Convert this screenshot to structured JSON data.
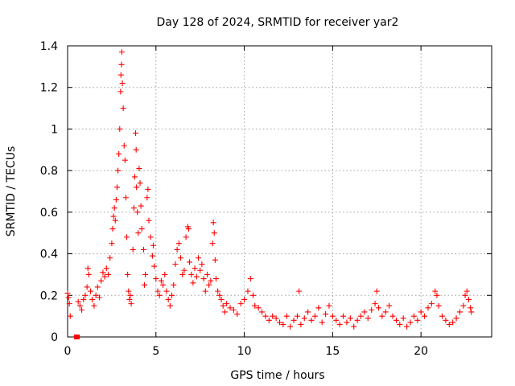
{
  "chart_data": {
    "type": "scatter",
    "title": "Day 128 of 2024, SRMTID for receiver yar2",
    "xlabel": "GPS time / hours",
    "ylabel": "SRMTID / TECUs",
    "xlim": [
      0,
      24
    ],
    "ylim": [
      0,
      1.4
    ],
    "xticks": [
      0,
      5,
      10,
      15,
      20
    ],
    "xtick_labels": [
      "0",
      "5",
      "10",
      "15",
      "20"
    ],
    "yticks": [
      0,
      0.2,
      0.4,
      0.6,
      0.8,
      1.0,
      1.2,
      1.4
    ],
    "ytick_labels": [
      "0",
      "0.2",
      "0.4",
      "0.6",
      "0.8",
      "1",
      "1.2",
      "1.4"
    ],
    "grid": true,
    "series": [
      {
        "name": "yar2",
        "marker": "plus",
        "color": "#ff0000",
        "points": [
          [
            0.0,
            0.21
          ],
          [
            0.05,
            0.19
          ],
          [
            0.1,
            0.16
          ],
          [
            0.15,
            0.1
          ],
          [
            0.5,
            0.0
          ],
          [
            0.55,
            0.0
          ],
          [
            0.6,
            0.17
          ],
          [
            0.7,
            0.15
          ],
          [
            0.8,
            0.13
          ],
          [
            0.9,
            0.18
          ],
          [
            1.0,
            0.2
          ],
          [
            1.1,
            0.24
          ],
          [
            1.15,
            0.33
          ],
          [
            1.2,
            0.3
          ],
          [
            1.3,
            0.22
          ],
          [
            1.4,
            0.18
          ],
          [
            1.5,
            0.15
          ],
          [
            1.6,
            0.2
          ],
          [
            1.7,
            0.24
          ],
          [
            1.8,
            0.19
          ],
          [
            1.9,
            0.27
          ],
          [
            2.0,
            0.31
          ],
          [
            2.1,
            0.29
          ],
          [
            2.2,
            0.33
          ],
          [
            2.3,
            0.3
          ],
          [
            2.4,
            0.38
          ],
          [
            2.5,
            0.45
          ],
          [
            2.55,
            0.52
          ],
          [
            2.6,
            0.58
          ],
          [
            2.65,
            0.62
          ],
          [
            2.7,
            0.56
          ],
          [
            2.75,
            0.66
          ],
          [
            2.8,
            0.72
          ],
          [
            2.85,
            0.8
          ],
          [
            2.9,
            0.88
          ],
          [
            2.95,
            1.0
          ],
          [
            3.0,
            1.18
          ],
          [
            3.02,
            1.26
          ],
          [
            3.05,
            1.31
          ],
          [
            3.07,
            1.37
          ],
          [
            3.1,
            1.22
          ],
          [
            3.15,
            1.1
          ],
          [
            3.2,
            0.92
          ],
          [
            3.25,
            0.85
          ],
          [
            3.3,
            0.67
          ],
          [
            3.35,
            0.48
          ],
          [
            3.4,
            0.3
          ],
          [
            3.45,
            0.22
          ],
          [
            3.5,
            0.18
          ],
          [
            3.55,
            0.2
          ],
          [
            3.6,
            0.16
          ],
          [
            3.7,
            0.42
          ],
          [
            3.75,
            0.62
          ],
          [
            3.8,
            0.77
          ],
          [
            3.85,
            0.98
          ],
          [
            3.88,
            0.9
          ],
          [
            3.9,
            0.72
          ],
          [
            3.95,
            0.6
          ],
          [
            4.0,
            0.5
          ],
          [
            4.05,
            0.81
          ],
          [
            4.1,
            0.74
          ],
          [
            4.15,
            0.63
          ],
          [
            4.2,
            0.52
          ],
          [
            4.3,
            0.42
          ],
          [
            4.35,
            0.25
          ],
          [
            4.4,
            0.3
          ],
          [
            4.5,
            0.67
          ],
          [
            4.55,
            0.71
          ],
          [
            4.6,
            0.56
          ],
          [
            4.7,
            0.48
          ],
          [
            4.8,
            0.39
          ],
          [
            4.85,
            0.44
          ],
          [
            4.9,
            0.34
          ],
          [
            5.0,
            0.28
          ],
          [
            5.1,
            0.22
          ],
          [
            5.2,
            0.2
          ],
          [
            5.3,
            0.27
          ],
          [
            5.4,
            0.25
          ],
          [
            5.5,
            0.3
          ],
          [
            5.6,
            0.22
          ],
          [
            5.7,
            0.18
          ],
          [
            5.8,
            0.15
          ],
          [
            5.9,
            0.2
          ],
          [
            6.0,
            0.25
          ],
          [
            6.1,
            0.35
          ],
          [
            6.2,
            0.42
          ],
          [
            6.3,
            0.45
          ],
          [
            6.4,
            0.38
          ],
          [
            6.5,
            0.3
          ],
          [
            6.6,
            0.32
          ],
          [
            6.7,
            0.48
          ],
          [
            6.8,
            0.53
          ],
          [
            6.85,
            0.52
          ],
          [
            6.9,
            0.36
          ],
          [
            7.0,
            0.3
          ],
          [
            7.1,
            0.26
          ],
          [
            7.2,
            0.33
          ],
          [
            7.3,
            0.29
          ],
          [
            7.4,
            0.38
          ],
          [
            7.5,
            0.32
          ],
          [
            7.6,
            0.35
          ],
          [
            7.7,
            0.28
          ],
          [
            7.8,
            0.22
          ],
          [
            7.9,
            0.3
          ],
          [
            8.0,
            0.25
          ],
          [
            8.1,
            0.27
          ],
          [
            8.2,
            0.45
          ],
          [
            8.25,
            0.55
          ],
          [
            8.3,
            0.5
          ],
          [
            8.35,
            0.37
          ],
          [
            8.4,
            0.28
          ],
          [
            8.5,
            0.22
          ],
          [
            8.6,
            0.2
          ],
          [
            8.7,
            0.18
          ],
          [
            8.8,
            0.15
          ],
          [
            8.9,
            0.12
          ],
          [
            9.0,
            0.16
          ],
          [
            9.2,
            0.14
          ],
          [
            9.4,
            0.13
          ],
          [
            9.6,
            0.11
          ],
          [
            9.8,
            0.16
          ],
          [
            10.0,
            0.18
          ],
          [
            10.2,
            0.22
          ],
          [
            10.35,
            0.28
          ],
          [
            10.5,
            0.2
          ],
          [
            10.6,
            0.15
          ],
          [
            10.8,
            0.14
          ],
          [
            11.0,
            0.12
          ],
          [
            11.2,
            0.1
          ],
          [
            11.4,
            0.08
          ],
          [
            11.6,
            0.1
          ],
          [
            11.8,
            0.09
          ],
          [
            12.0,
            0.07
          ],
          [
            12.2,
            0.06
          ],
          [
            12.4,
            0.1
          ],
          [
            12.6,
            0.05
          ],
          [
            12.8,
            0.08
          ],
          [
            13.0,
            0.1
          ],
          [
            13.1,
            0.22
          ],
          [
            13.2,
            0.06
          ],
          [
            13.4,
            0.09
          ],
          [
            13.6,
            0.12
          ],
          [
            13.8,
            0.08
          ],
          [
            14.0,
            0.1
          ],
          [
            14.2,
            0.14
          ],
          [
            14.4,
            0.07
          ],
          [
            14.6,
            0.11
          ],
          [
            14.8,
            0.15
          ],
          [
            15.0,
            0.1
          ],
          [
            15.2,
            0.08
          ],
          [
            15.4,
            0.06
          ],
          [
            15.6,
            0.1
          ],
          [
            15.8,
            0.07
          ],
          [
            16.0,
            0.09
          ],
          [
            16.2,
            0.05
          ],
          [
            16.4,
            0.08
          ],
          [
            16.6,
            0.1
          ],
          [
            16.8,
            0.12
          ],
          [
            17.0,
            0.09
          ],
          [
            17.2,
            0.13
          ],
          [
            17.4,
            0.16
          ],
          [
            17.5,
            0.22
          ],
          [
            17.6,
            0.14
          ],
          [
            17.8,
            0.1
          ],
          [
            18.0,
            0.12
          ],
          [
            18.2,
            0.15
          ],
          [
            18.4,
            0.1
          ],
          [
            18.6,
            0.08
          ],
          [
            18.8,
            0.06
          ],
          [
            19.0,
            0.09
          ],
          [
            19.2,
            0.05
          ],
          [
            19.4,
            0.07
          ],
          [
            19.6,
            0.1
          ],
          [
            19.8,
            0.08
          ],
          [
            20.0,
            0.12
          ],
          [
            20.2,
            0.1
          ],
          [
            20.4,
            0.14
          ],
          [
            20.6,
            0.16
          ],
          [
            20.8,
            0.22
          ],
          [
            20.9,
            0.2
          ],
          [
            21.0,
            0.15
          ],
          [
            21.2,
            0.1
          ],
          [
            21.4,
            0.08
          ],
          [
            21.6,
            0.06
          ],
          [
            21.8,
            0.07
          ],
          [
            22.0,
            0.09
          ],
          [
            22.2,
            0.12
          ],
          [
            22.4,
            0.15
          ],
          [
            22.5,
            0.2
          ],
          [
            22.6,
            0.22
          ],
          [
            22.7,
            0.18
          ],
          [
            22.8,
            0.14
          ],
          [
            22.85,
            0.12
          ]
        ]
      }
    ]
  }
}
